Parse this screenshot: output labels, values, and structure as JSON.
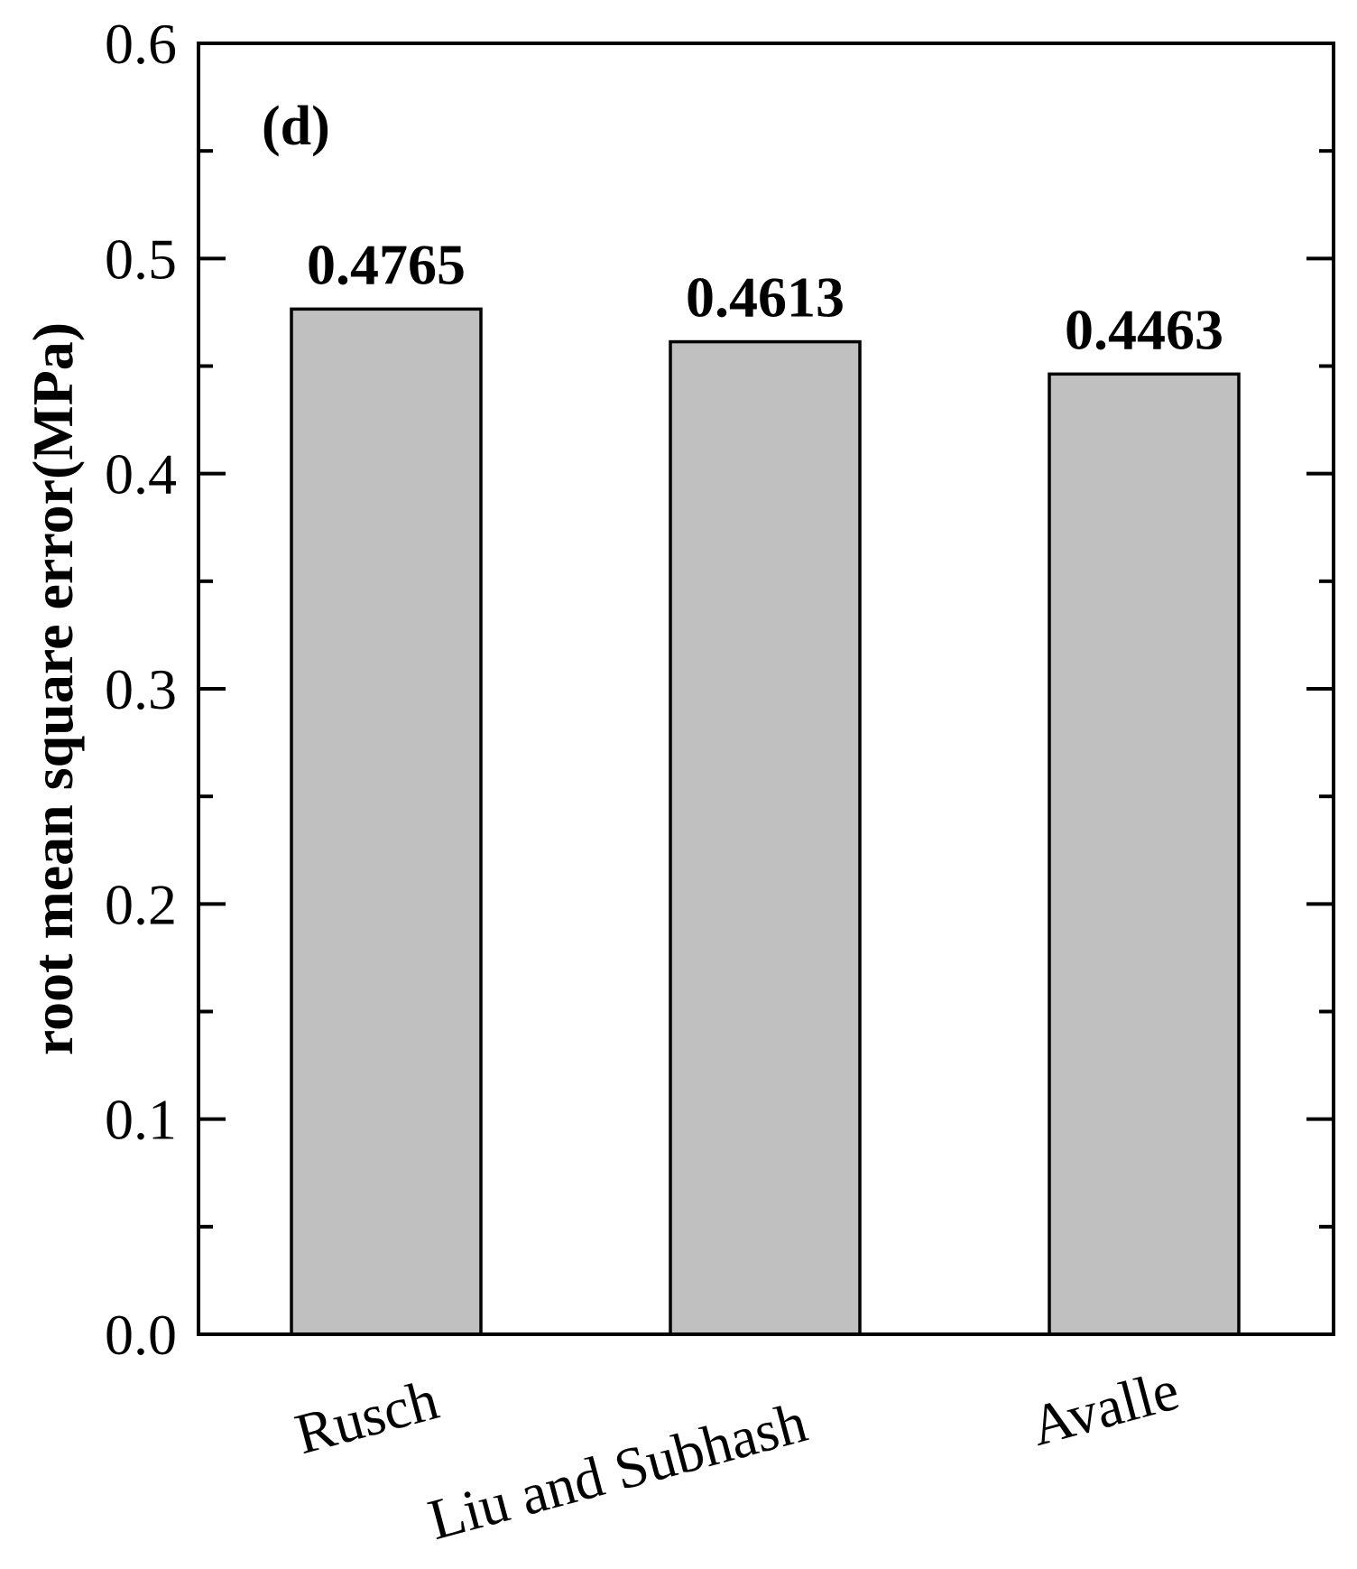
{
  "chart_data": {
    "type": "bar",
    "panel_label": "(d)",
    "categories": [
      "Rusch",
      "Liu and Subhash",
      "Avalle"
    ],
    "values": [
      0.4765,
      0.4613,
      0.4463
    ],
    "data_labels": [
      "0.4765",
      "0.4613",
      "0.4463"
    ],
    "ylabel": "root mean square error(MPa)",
    "xlabel": "",
    "ylim": [
      0.0,
      0.6
    ],
    "yticks": [
      "0.0",
      "0.1",
      "0.2",
      "0.3",
      "0.4",
      "0.5",
      "0.6"
    ],
    "bar_color": "#c0c0c0",
    "grid": false
  }
}
